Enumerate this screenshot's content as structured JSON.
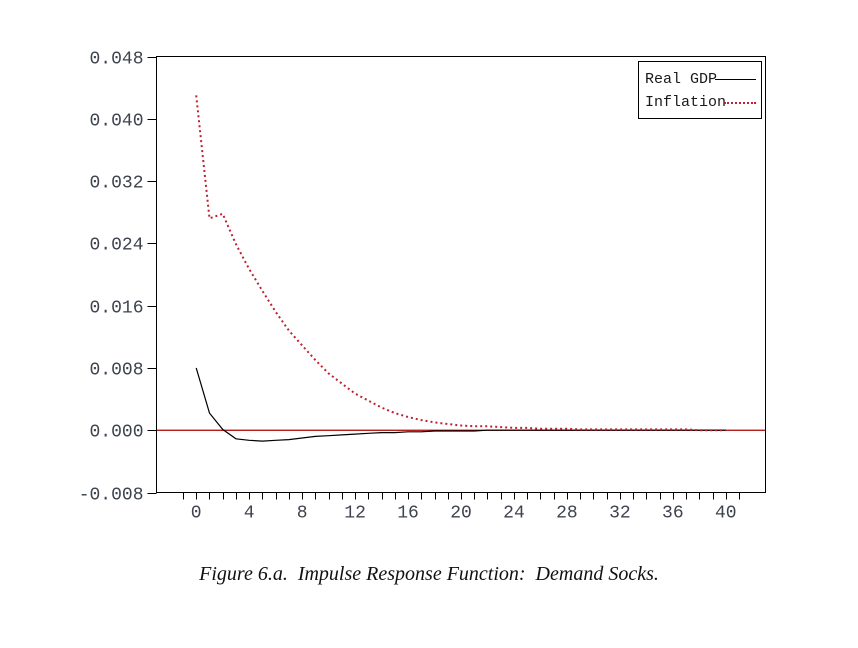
{
  "page": {
    "background": "#ffffff"
  },
  "caption": {
    "text": "Figure 6.a.  Impulse Response Function:  Demand Socks."
  },
  "legend": {
    "position": "top-right",
    "items": [
      {
        "label": "Real GDP",
        "style": "solid",
        "color": "#000000"
      },
      {
        "label": "Inflation",
        "style": "dotted",
        "color": "#c02030"
      }
    ]
  },
  "chart_data": {
    "type": "line",
    "title": "",
    "xlabel": "",
    "ylabel": "",
    "grid": false,
    "legend_position": "top-right",
    "xlim": [
      -3,
      43
    ],
    "ylim": [
      -0.008,
      0.048
    ],
    "x": [
      0,
      1,
      2,
      3,
      4,
      5,
      6,
      7,
      8,
      9,
      10,
      11,
      12,
      13,
      14,
      15,
      16,
      17,
      18,
      19,
      20,
      21,
      22,
      23,
      24,
      25,
      26,
      27,
      28,
      29,
      30,
      31,
      32,
      33,
      34,
      35,
      36,
      37,
      38,
      39,
      40
    ],
    "series": [
      {
        "name": "Real GDP",
        "color": "#000000",
        "style": "solid",
        "values": [
          0.008,
          0.0022,
          0.0001,
          -0.0011,
          -0.0013,
          -0.0014,
          -0.0013,
          -0.0012,
          -0.001,
          -0.0008,
          -0.0007,
          -0.0006,
          -0.0005,
          -0.0004,
          -0.0003,
          -0.0003,
          -0.0002,
          -0.0002,
          -0.0001,
          -0.0001,
          -0.0001,
          -0.0001,
          0.0,
          0.0,
          0.0,
          0.0,
          0.0,
          0.0,
          0.0,
          0.0,
          0.0,
          0.0,
          0.0,
          0.0,
          0.0,
          0.0,
          0.0,
          0.0,
          0.0,
          0.0,
          0.0
        ]
      },
      {
        "name": "Inflation",
        "color": "#c02030",
        "style": "dotted",
        "values": [
          0.043,
          0.0272,
          0.0278,
          0.0239,
          0.0207,
          0.0179,
          0.0152,
          0.0128,
          0.0109,
          0.009,
          0.0073,
          0.006,
          0.0047,
          0.0038,
          0.0029,
          0.0022,
          0.0017,
          0.0013,
          0.001,
          0.0008,
          0.0006,
          0.0005,
          0.0005,
          0.0004,
          0.0003,
          0.0003,
          0.0002,
          0.0002,
          0.0002,
          0.0001,
          0.0001,
          0.0001,
          0.0001,
          0.0001,
          0.0001,
          0.0001,
          0.0001,
          0.0001,
          0.0,
          0.0,
          0.0
        ]
      }
    ],
    "y_ticks": [
      {
        "v": 0.048,
        "label": "0.048"
      },
      {
        "v": 0.04,
        "label": "0.040"
      },
      {
        "v": 0.032,
        "label": "0.032"
      },
      {
        "v": 0.024,
        "label": "0.024"
      },
      {
        "v": 0.016,
        "label": "0.016"
      },
      {
        "v": 0.008,
        "label": "0.008"
      },
      {
        "v": 0.0,
        "label": "0.000"
      },
      {
        "v": -0.008,
        "label": "-0.008"
      }
    ],
    "x_major_ticks": [
      {
        "v": 0,
        "label": "0"
      },
      {
        "v": 4,
        "label": "4"
      },
      {
        "v": 8,
        "label": "8"
      },
      {
        "v": 12,
        "label": "12"
      },
      {
        "v": 16,
        "label": "16"
      },
      {
        "v": 20,
        "label": "20"
      },
      {
        "v": 24,
        "label": "24"
      },
      {
        "v": 28,
        "label": "28"
      },
      {
        "v": 32,
        "label": "32"
      },
      {
        "v": 36,
        "label": "36"
      },
      {
        "v": 40,
        "label": "40"
      }
    ],
    "x_minor_from": -1,
    "x_minor_to": 41,
    "x_minor_step": 1,
    "zero_line": {
      "v": 0.0,
      "color": "#aa0000"
    },
    "colors": {
      "axis": "#000000",
      "tick_label": "#3e434e",
      "gdp_line": "#000000",
      "inflation_dots": "#c02030",
      "zero_line": "#aa0000"
    }
  }
}
